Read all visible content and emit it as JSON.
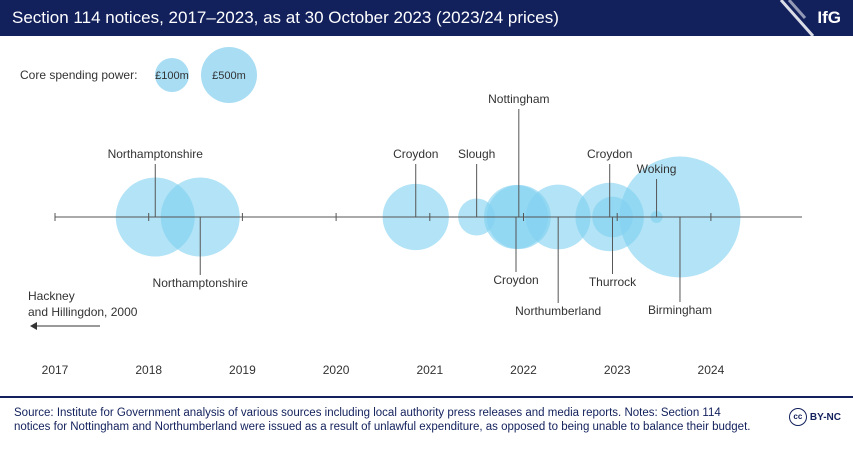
{
  "header": {
    "title": "Section 114 notices, 2017–2023, as at 30 October 2023 (2023/24 prices)",
    "logo": "IfG"
  },
  "legend": {
    "label": "Core spending power:",
    "items": [
      {
        "label": "£100m",
        "value": 100
      },
      {
        "label": "£500m",
        "value": 500
      }
    ]
  },
  "annotation": {
    "text_line1": "Hackney",
    "text_line2": "and Hillingdon, 2000"
  },
  "chart_data": {
    "type": "scatter",
    "title": "Section 114 notices, 2017–2023, as at 30 October 2023 (2023/24 prices)",
    "x_axis_ticks": [
      "2017",
      "2018",
      "2019",
      "2020",
      "2021",
      "2022",
      "2023",
      "2024"
    ],
    "xlim": [
      2017,
      2025
    ],
    "size_measure": "Core spending power (£m)",
    "bubble_color": "#7fd0f0",
    "points": [
      {
        "name": "Northamptonshire",
        "x": 2018.07,
        "size": 640,
        "label_side": "above"
      },
      {
        "name": "Northamptonshire",
        "x": 2018.55,
        "size": 640,
        "label_side": "below"
      },
      {
        "name": "Croydon",
        "x": 2020.85,
        "size": 450,
        "label_side": "above"
      },
      {
        "name": "Slough",
        "x": 2021.5,
        "size": 140,
        "label_side": "above"
      },
      {
        "name": "Nottingham",
        "x": 2021.95,
        "size": 420,
        "label_side": "above"
      },
      {
        "name": "Croydon",
        "x": 2021.92,
        "size": 420,
        "label_side": "below"
      },
      {
        "name": "Northumberland",
        "x": 2022.37,
        "size": 430,
        "label_side": "below"
      },
      {
        "name": "Croydon",
        "x": 2022.92,
        "size": 480,
        "label_side": "above"
      },
      {
        "name": "Thurrock",
        "x": 2022.95,
        "size": 170,
        "label_side": "below"
      },
      {
        "name": "Woking",
        "x": 2023.42,
        "size": 15,
        "label_side": "above"
      },
      {
        "name": "Birmingham",
        "x": 2023.67,
        "size": 1500,
        "label_side": "below"
      }
    ]
  },
  "footer": {
    "source": "Source: Institute for Government analysis of various sources including local authority press releases and media reports. Notes: Section 114 notices for Nottingham and Northumberland were issued as a result of unlawful expenditure, as opposed to being unable to balance their budget.",
    "license_icon": "cc-icon",
    "license": "BY-NC"
  }
}
